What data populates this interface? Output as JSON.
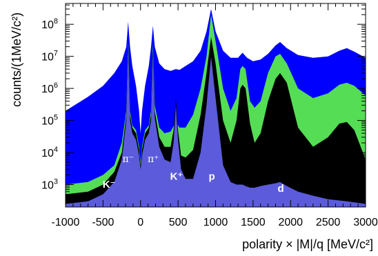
{
  "chart_data": {
    "type": "area",
    "title": "",
    "xlabel": "polarity × |M|/q [MeV/c²]",
    "ylabel": "counts/(1MeV/c²)",
    "xlim": [
      -1000,
      3000
    ],
    "ylim_log10": [
      2.3,
      8.65
    ],
    "y_scale": "log",
    "grid": false,
    "x_ticks": [
      "-1000",
      "-500",
      "0",
      "500",
      "1000",
      "1500",
      "2000",
      "2500",
      "3000"
    ],
    "x_tick_values": [
      -1000,
      -500,
      0,
      500,
      1000,
      1500,
      2000,
      2500,
      3000
    ],
    "y_tick_values": [
      1000,
      10000,
      100000,
      1000000,
      10000000,
      100000000
    ],
    "y_ticks": [
      {
        "base": "10",
        "exp": "3"
      },
      {
        "base": "10",
        "exp": "4"
      },
      {
        "base": "10",
        "exp": "5"
      },
      {
        "base": "10",
        "exp": "6"
      },
      {
        "base": "10",
        "exp": "7"
      },
      {
        "base": "10",
        "exp": "8"
      }
    ],
    "annotations": [
      {
        "text": "K⁻",
        "x": -420,
        "y": 800
      },
      {
        "text": "π⁻",
        "x": -165,
        "y": 5000
      },
      {
        "text": "π⁺",
        "x": 170,
        "y": 5000
      },
      {
        "text": "K⁺",
        "x": 480,
        "y": 1400
      },
      {
        "text": "p",
        "x": 950,
        "y": 1400
      },
      {
        "text": "d",
        "x": 1870,
        "y": 600
      }
    ],
    "series": [
      {
        "color": "#0000ff",
        "x": [
          -1000,
          -900,
          -700,
          -500,
          -350,
          -250,
          -190,
          -165,
          -140,
          -110,
          -60,
          -20,
          0,
          20,
          60,
          110,
          140,
          165,
          190,
          250,
          320,
          400,
          470,
          520,
          600,
          700,
          800,
          880,
          940,
          1000,
          1100,
          1200,
          1300,
          1360,
          1420,
          1500,
          1600,
          1700,
          1800,
          1860,
          1950,
          2100,
          2300,
          2500,
          2650,
          2750,
          2850,
          3000
        ],
        "y": [
          200000,
          280000,
          550000,
          1200000,
          3000000,
          7000000,
          20000000,
          120000000,
          20000000,
          5000000,
          1200000,
          200000,
          40000,
          200000,
          1200000,
          5000000,
          20000000,
          90000000,
          20000000,
          6000000,
          4000000,
          3500000,
          4000000,
          3800000,
          5000000,
          7000000,
          15000000,
          60000000,
          300000000,
          60000000,
          15000000,
          9000000,
          9000000,
          13000000,
          9000000,
          7000000,
          8000000,
          12000000,
          22000000,
          28000000,
          18000000,
          11000000,
          9000000,
          10000000,
          15000000,
          18000000,
          14000000,
          9000000
        ]
      },
      {
        "color": "#55dd55",
        "x": [
          -1000,
          -700,
          -500,
          -350,
          -250,
          -190,
          -165,
          -140,
          -110,
          -60,
          -20,
          0,
          20,
          60,
          110,
          140,
          165,
          190,
          250,
          320,
          400,
          470,
          520,
          600,
          700,
          800,
          880,
          940,
          1000,
          1100,
          1200,
          1280,
          1330,
          1360,
          1400,
          1460,
          1520,
          1600,
          1700,
          1800,
          1860,
          1950,
          2100,
          2300,
          2500,
          2650,
          2750,
          2850,
          3000
        ],
        "y": [
          1000,
          1200,
          2000,
          4000,
          20000,
          200000,
          30000000,
          200000,
          70000,
          50000,
          15000,
          5000,
          15000,
          50000,
          70000,
          200000,
          25000000,
          300000,
          60000,
          40000,
          45000,
          90000,
          60000,
          60000,
          150000,
          1000000,
          10000000,
          200000000,
          30000000,
          1000000,
          200000,
          500000,
          4000000,
          5000000,
          4000000,
          400000,
          250000,
          400000,
          3000000,
          10000000,
          12000000,
          6000000,
          1000000,
          500000,
          700000,
          1300000,
          1500000,
          1200000,
          600000
        ]
      },
      {
        "color": "#000000",
        "x": [
          -1000,
          -700,
          -500,
          -350,
          -250,
          -190,
          -165,
          -140,
          -110,
          -60,
          -20,
          0,
          20,
          60,
          110,
          140,
          165,
          190,
          250,
          320,
          400,
          440,
          470,
          500,
          540,
          600,
          700,
          800,
          880,
          940,
          1000,
          1100,
          1200,
          1280,
          1330,
          1360,
          1400,
          1460,
          1520,
          1600,
          1700,
          1800,
          1860,
          1950,
          2100,
          2300,
          2500,
          2650,
          2750,
          2850,
          3000
        ],
        "y": [
          500,
          600,
          1000,
          2500,
          10000,
          150000,
          20000000,
          150000,
          60000,
          40000,
          12000,
          4000,
          12000,
          40000,
          60000,
          150000,
          15000000,
          200000,
          30000,
          15000,
          15000,
          50000,
          500000,
          50000,
          8000,
          7000,
          12000,
          150000,
          3000000,
          40000000,
          6000000,
          100000,
          20000,
          100000,
          1000000,
          1300000,
          1000000,
          80000,
          20000,
          40000,
          400000,
          2000000,
          3000000,
          1500000,
          60000,
          15000,
          30000,
          80000,
          90000,
          50000,
          6000
        ]
      },
      {
        "color": "#5b5bdb",
        "x": [
          -1000,
          -700,
          -500,
          -350,
          -250,
          -190,
          -165,
          -140,
          -110,
          -60,
          -20,
          0,
          20,
          60,
          110,
          140,
          165,
          190,
          250,
          320,
          400,
          440,
          470,
          500,
          540,
          600,
          700,
          800,
          880,
          940,
          1000,
          1100,
          1200,
          1280,
          1330,
          1360,
          1400,
          1460,
          1520,
          1600,
          1700,
          1800,
          1860,
          1950,
          2100,
          2300,
          2500,
          2650,
          2750,
          2850,
          3000
        ],
        "y": [
          250,
          300,
          500,
          1200,
          6000,
          100000,
          15000000,
          100000,
          40000,
          25000,
          8000,
          3000,
          8000,
          25000,
          40000,
          100000,
          10000000,
          120000,
          15000,
          6000,
          5000,
          20000,
          300000,
          25000,
          3000,
          1500,
          1500,
          10000,
          300000,
          10000000,
          500000,
          4000,
          1200,
          1000,
          1000,
          1000,
          900,
          800,
          800,
          900,
          1000,
          1100,
          1200,
          900,
          600,
          450,
          350,
          320,
          300,
          280,
          250
        ]
      }
    ]
  }
}
